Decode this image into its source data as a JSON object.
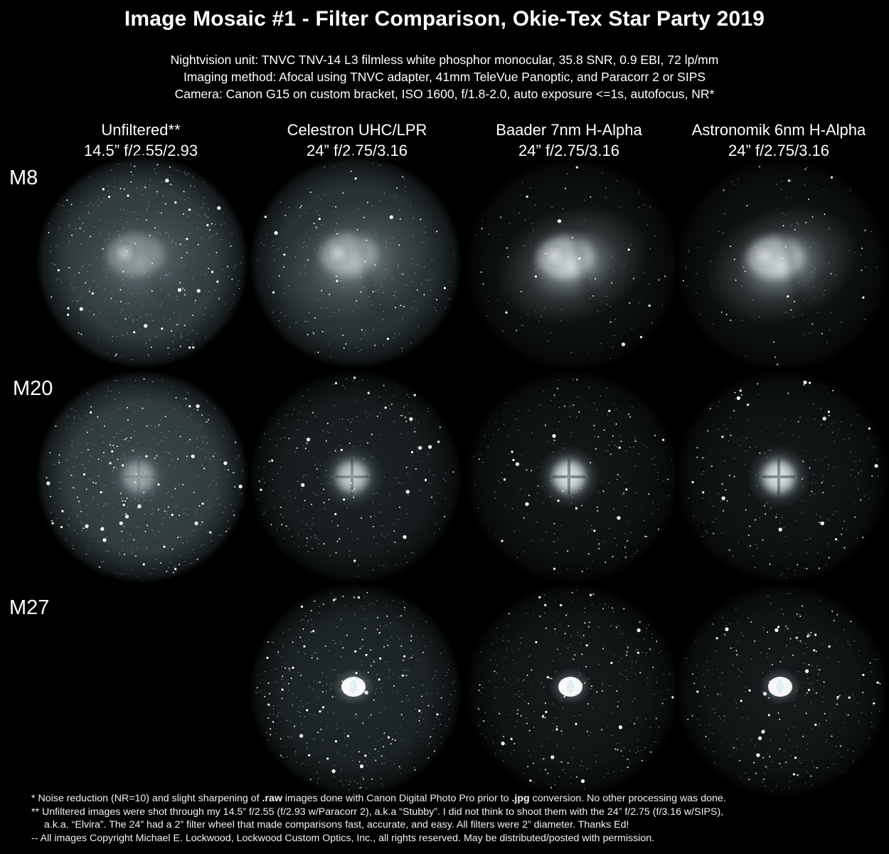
{
  "title": "Image Mosaic #1 - Filter Comparison, Okie-Tex Star Party 2019",
  "setup": {
    "nightvision": "Nightvision unit:  TNVC TNV-14 L3 filmless white phosphor monocular, 35.8 SNR, 0.9 EBI, 72 lp/mm",
    "imaging": "Imaging method:  Afocal using TNVC adapter, 41mm TeleVue Panoptic, and Paracorr 2 or SIPS",
    "camera": "Camera:  Canon G15 on custom bracket, ISO 1600, f/1.8-2.0, auto exposure <=1s, autofocus, NR*"
  },
  "columns": [
    {
      "filter": "Unfiltered**",
      "scope": "14.5” f/2.55/2.93"
    },
    {
      "filter": "Celestron UHC/LPR",
      "scope": "24” f/2.75/3.16"
    },
    {
      "filter": "Baader 7nm H-Alpha",
      "scope": "24” f/2.75/3.16"
    },
    {
      "filter": "Astronomik 6nm H-Alpha",
      "scope": "24” f/2.75/3.16"
    }
  ],
  "rows": [
    {
      "object": "M8"
    },
    {
      "object": "M20"
    },
    {
      "object": "M27"
    }
  ],
  "colors": {
    "phosphor": "#a9d4dc",
    "background": "#000000"
  },
  "notes": {
    "n1_pre": "*  Noise reduction (NR=10) and slight sharpening of ",
    "n1_raw": ".raw",
    "n1_mid": " images done with Canon Digital Photo Pro prior to ",
    "n1_jpg": ".jpg",
    "n1_post": " conversion.  No other processing was done.",
    "n2a": "** Unfiltered images were shot through my 14.5” f/2.55 (f/2.93 w/Paracorr 2), a.k.a “Stubby”.  I did not think to shoot them with the 24” f/2.75 (f/3.16 w/SIPS),",
    "n2b": "a.k.a. “Elvira”.  The 24” had a 2” filter wheel that made comparisons fast, accurate, and easy.  All filters were 2” diameter.  Thanks Ed!",
    "n3": "-- All images Copyright Michael E. Lockwood, Lockwood Custom Optics, Inc., all rights reserved.  May be distributed/posted with permission."
  }
}
